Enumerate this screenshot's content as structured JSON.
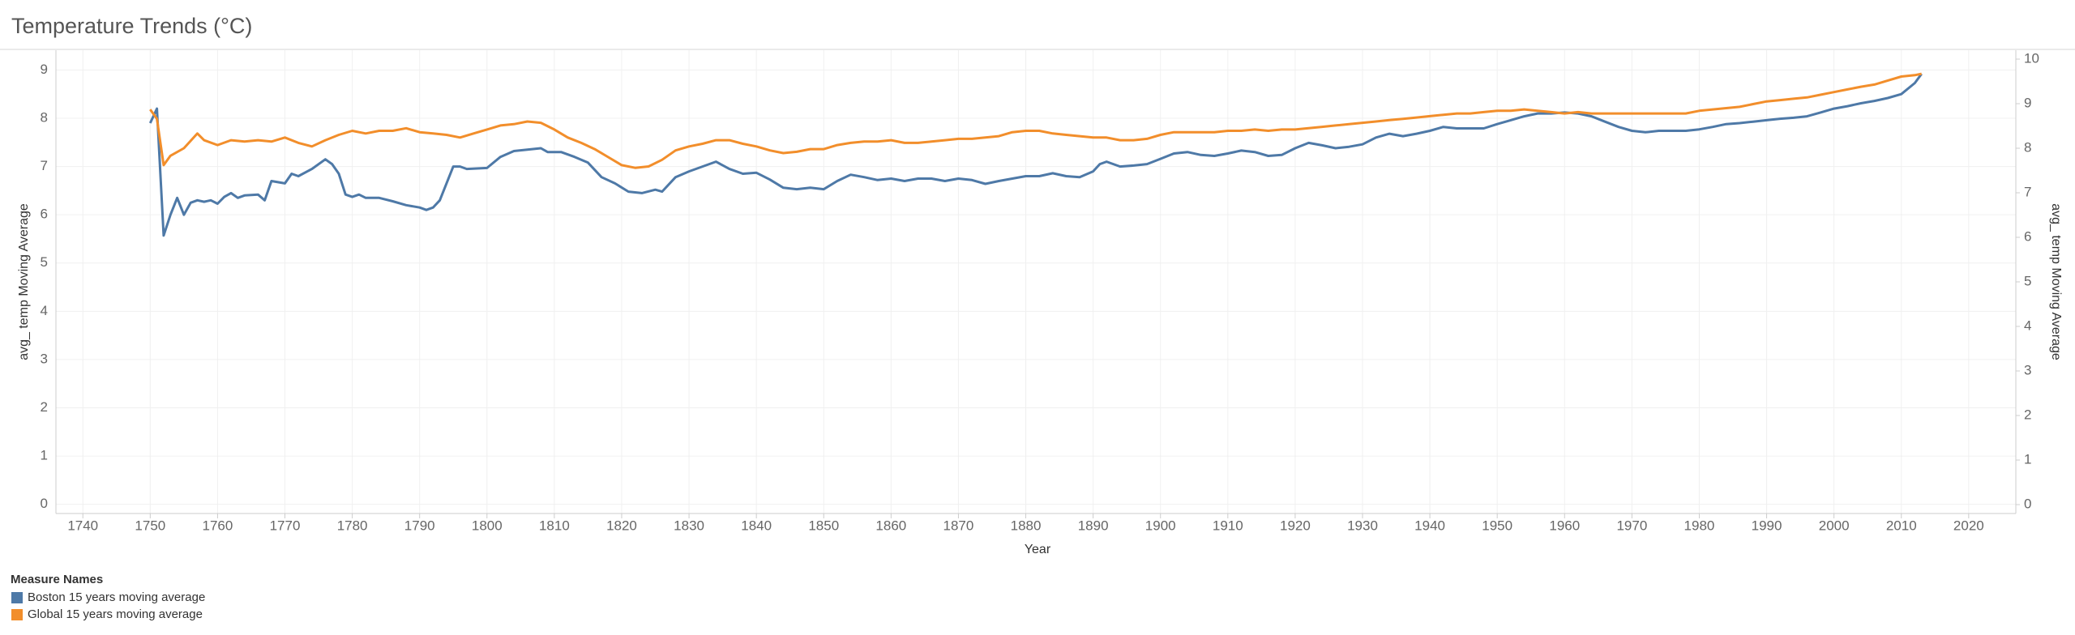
{
  "chart_data": {
    "type": "line",
    "title": "Temperature Trends (°C)",
    "x_label": "Year",
    "y_label": "avg_ temp Moving Average",
    "y2_label": "avg_ temp Moving Average",
    "legend_title": "Measure Names",
    "legend": "bottom-left",
    "grid": true,
    "xlim": [
      1736,
      2027
    ],
    "xticks": [
      1740,
      1750,
      1760,
      1770,
      1780,
      1790,
      1800,
      1810,
      1820,
      1830,
      1840,
      1850,
      1860,
      1870,
      1880,
      1890,
      1900,
      1910,
      1920,
      1930,
      1940,
      1950,
      1960,
      1970,
      1980,
      1990,
      2000,
      2010,
      2020
    ],
    "ylim": [
      -0.19,
      9.41
    ],
    "yticks": [
      0,
      1,
      2,
      3,
      4,
      5,
      6,
      7,
      8,
      9
    ],
    "y2lim": [
      -0.2,
      10.2
    ],
    "y2ticks": [
      0,
      1,
      2,
      3,
      4,
      5,
      6,
      7,
      8,
      9,
      10
    ],
    "series": [
      {
        "name": "Boston 15 years moving average",
        "color": "#4e79a7",
        "axis": "y",
        "x": [
          1750,
          1751,
          1752,
          1753,
          1754,
          1755,
          1756,
          1757,
          1758,
          1759,
          1760,
          1761,
          1762,
          1763,
          1764,
          1766,
          1767,
          1768,
          1770,
          1771,
          1772,
          1774,
          1776,
          1777,
          1778,
          1779,
          1780,
          1781,
          1782,
          1784,
          1786,
          1788,
          1790,
          1791,
          1792,
          1793,
          1794,
          1795,
          1796,
          1797,
          1800,
          1802,
          1804,
          1806,
          1808,
          1809,
          1811,
          1813,
          1815,
          1817,
          1819,
          1821,
          1823,
          1825,
          1826,
          1828,
          1830,
          1832,
          1834,
          1836,
          1838,
          1840,
          1842,
          1844,
          1846,
          1848,
          1850,
          1852,
          1854,
          1856,
          1858,
          1860,
          1862,
          1864,
          1866,
          1868,
          1870,
          1872,
          1874,
          1876,
          1878,
          1880,
          1882,
          1884,
          1886,
          1888,
          1890,
          1891,
          1892,
          1894,
          1896,
          1898,
          1900,
          1902,
          1904,
          1906,
          1908,
          1910,
          1912,
          1914,
          1916,
          1918,
          1920,
          1922,
          1924,
          1926,
          1928,
          1930,
          1932,
          1934,
          1936,
          1938,
          1940,
          1942,
          1944,
          1946,
          1948,
          1950,
          1952,
          1954,
          1956,
          1958,
          1960,
          1962,
          1964,
          1966,
          1968,
          1970,
          1972,
          1974,
          1976,
          1978,
          1980,
          1982,
          1984,
          1986,
          1988,
          1990,
          1992,
          1994,
          1996,
          1998,
          2000,
          2002,
          2004,
          2006,
          2008,
          2010,
          2012,
          2013
        ],
        "values": [
          7.9,
          8.2,
          5.57,
          6.0,
          6.35,
          6.0,
          6.25,
          6.3,
          6.27,
          6.3,
          6.23,
          6.37,
          6.45,
          6.35,
          6.4,
          6.42,
          6.3,
          6.7,
          6.65,
          6.85,
          6.8,
          6.95,
          7.15,
          7.05,
          6.85,
          6.42,
          6.37,
          6.42,
          6.35,
          6.35,
          6.28,
          6.2,
          6.15,
          6.1,
          6.15,
          6.3,
          6.65,
          7.0,
          7.0,
          6.95,
          6.97,
          7.2,
          7.32,
          7.35,
          7.38,
          7.3,
          7.3,
          7.2,
          7.08,
          6.78,
          6.65,
          6.48,
          6.45,
          6.52,
          6.48,
          6.78,
          6.9,
          7.0,
          7.1,
          6.95,
          6.85,
          6.87,
          6.73,
          6.56,
          6.53,
          6.56,
          6.53,
          6.7,
          6.83,
          6.78,
          6.72,
          6.75,
          6.7,
          6.75,
          6.75,
          6.7,
          6.75,
          6.72,
          6.64,
          6.7,
          6.75,
          6.8,
          6.8,
          6.86,
          6.8,
          6.78,
          6.9,
          7.05,
          7.1,
          7.0,
          7.02,
          7.05,
          7.16,
          7.27,
          7.3,
          7.24,
          7.22,
          7.27,
          7.33,
          7.3,
          7.22,
          7.24,
          7.38,
          7.49,
          7.44,
          7.38,
          7.41,
          7.46,
          7.6,
          7.68,
          7.63,
          7.68,
          7.74,
          7.82,
          7.79,
          7.79,
          7.79,
          7.88,
          7.96,
          8.04,
          8.1,
          8.1,
          8.12,
          8.1,
          8.04,
          7.93,
          7.82,
          7.74,
          7.71,
          7.74,
          7.74,
          7.74,
          7.77,
          7.82,
          7.88,
          7.9,
          7.93,
          7.96,
          7.99,
          8.01,
          8.04,
          8.12,
          8.2,
          8.25,
          8.31,
          8.36,
          8.42,
          8.5,
          8.73,
          8.92
        ]
      },
      {
        "name": "Global 15 years moving average",
        "color": "#f28e2b",
        "axis": "y2",
        "x": [
          1750,
          1751,
          1752,
          1753,
          1755,
          1757,
          1758,
          1760,
          1762,
          1764,
          1766,
          1768,
          1770,
          1772,
          1774,
          1776,
          1778,
          1780,
          1782,
          1784,
          1786,
          1788,
          1790,
          1792,
          1794,
          1796,
          1798,
          1800,
          1802,
          1804,
          1806,
          1808,
          1810,
          1812,
          1814,
          1816,
          1818,
          1820,
          1822,
          1824,
          1826,
          1828,
          1830,
          1832,
          1834,
          1836,
          1838,
          1840,
          1842,
          1844,
          1846,
          1848,
          1850,
          1852,
          1854,
          1856,
          1858,
          1860,
          1862,
          1864,
          1866,
          1868,
          1870,
          1872,
          1874,
          1876,
          1878,
          1880,
          1882,
          1884,
          1886,
          1888,
          1890,
          1892,
          1894,
          1896,
          1898,
          1900,
          1902,
          1904,
          1906,
          1908,
          1910,
          1912,
          1914,
          1916,
          1918,
          1920,
          1922,
          1924,
          1926,
          1928,
          1930,
          1932,
          1934,
          1936,
          1938,
          1940,
          1942,
          1944,
          1946,
          1948,
          1950,
          1952,
          1954,
          1956,
          1958,
          1960,
          1962,
          1964,
          1966,
          1968,
          1970,
          1972,
          1974,
          1976,
          1978,
          1980,
          1982,
          1984,
          1986,
          1988,
          1990,
          1992,
          1994,
          1996,
          1998,
          2000,
          2002,
          2004,
          2006,
          2008,
          2010,
          2012,
          2013
        ],
        "values": [
          8.87,
          8.66,
          7.62,
          7.83,
          8.0,
          8.33,
          8.18,
          8.07,
          8.18,
          8.15,
          8.18,
          8.15,
          8.24,
          8.12,
          8.04,
          8.18,
          8.3,
          8.39,
          8.33,
          8.39,
          8.39,
          8.45,
          8.36,
          8.33,
          8.3,
          8.24,
          8.33,
          8.42,
          8.51,
          8.54,
          8.6,
          8.57,
          8.42,
          8.24,
          8.12,
          7.98,
          7.8,
          7.62,
          7.56,
          7.59,
          7.74,
          7.95,
          8.04,
          8.1,
          8.18,
          8.18,
          8.1,
          8.04,
          7.95,
          7.89,
          7.92,
          7.98,
          7.98,
          8.07,
          8.12,
          8.15,
          8.15,
          8.18,
          8.12,
          8.12,
          8.15,
          8.18,
          8.21,
          8.21,
          8.24,
          8.27,
          8.36,
          8.39,
          8.39,
          8.33,
          8.3,
          8.27,
          8.24,
          8.24,
          8.18,
          8.18,
          8.21,
          8.3,
          8.36,
          8.36,
          8.36,
          8.36,
          8.39,
          8.39,
          8.42,
          8.39,
          8.42,
          8.42,
          8.45,
          8.48,
          8.51,
          8.54,
          8.57,
          8.6,
          8.63,
          8.66,
          8.69,
          8.72,
          8.75,
          8.78,
          8.78,
          8.81,
          8.84,
          8.84,
          8.87,
          8.84,
          8.81,
          8.78,
          8.81,
          8.78,
          8.78,
          8.78,
          8.78,
          8.78,
          8.78,
          8.78,
          8.78,
          8.84,
          8.87,
          8.9,
          8.93,
          8.99,
          9.05,
          9.08,
          9.11,
          9.14,
          9.2,
          9.26,
          9.32,
          9.38,
          9.43,
          9.52,
          9.61,
          9.64,
          9.67
        ]
      }
    ]
  }
}
